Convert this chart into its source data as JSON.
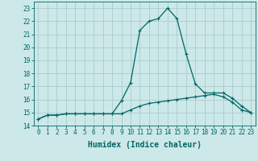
{
  "x": [
    0,
    1,
    2,
    3,
    4,
    5,
    6,
    7,
    8,
    9,
    10,
    11,
    12,
    13,
    14,
    15,
    16,
    17,
    18,
    19,
    20,
    21,
    22,
    23
  ],
  "line1": [
    14.5,
    14.8,
    14.8,
    14.9,
    14.9,
    14.9,
    14.9,
    14.9,
    14.9,
    14.9,
    15.2,
    15.5,
    15.7,
    15.8,
    15.9,
    16.0,
    16.1,
    16.2,
    16.3,
    16.4,
    16.2,
    15.8,
    15.2,
    15.0
  ],
  "line2": [
    14.5,
    14.8,
    14.8,
    14.9,
    14.9,
    14.9,
    14.9,
    14.9,
    14.9,
    15.9,
    17.3,
    21.3,
    22.0,
    22.2,
    23.0,
    22.2,
    19.5,
    17.2,
    16.5,
    16.5,
    16.5,
    16.1,
    15.5,
    15.0
  ],
  "bg_color": "#cce8e8",
  "grid_color": "#aacccc",
  "line_color": "#006666",
  "xlabel": "Humidex (Indice chaleur)",
  "ylim": [
    14,
    23.5
  ],
  "xlim": [
    -0.5,
    23.5
  ],
  "yticks": [
    14,
    15,
    16,
    17,
    18,
    19,
    20,
    21,
    22,
    23
  ],
  "xticks": [
    0,
    1,
    2,
    3,
    4,
    5,
    6,
    7,
    8,
    9,
    10,
    11,
    12,
    13,
    14,
    15,
    16,
    17,
    18,
    19,
    20,
    21,
    22,
    23
  ],
  "tick_fontsize": 5.5,
  "xlabel_fontsize": 7.0
}
